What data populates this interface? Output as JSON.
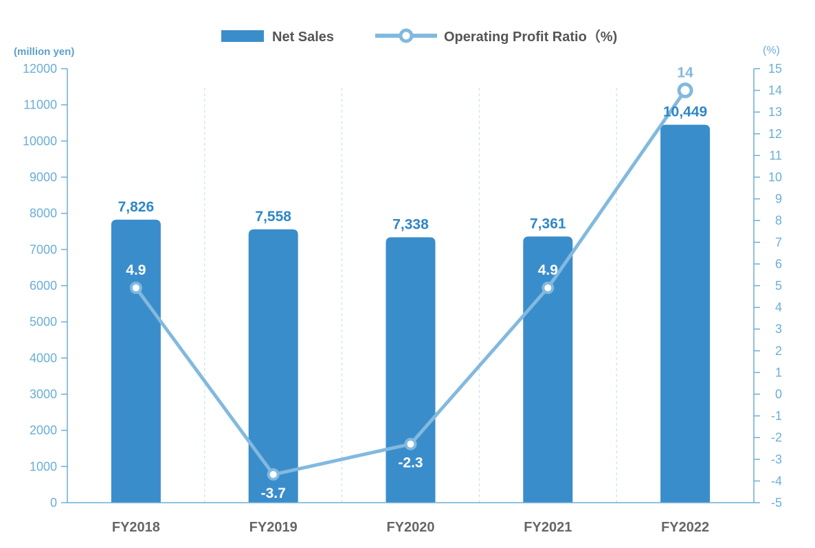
{
  "chart_data": {
    "type": "bar",
    "categories": [
      "FY2018",
      "FY2019",
      "FY2020",
      "FY2021",
      "FY2022"
    ],
    "series": [
      {
        "name": "Net Sales",
        "type": "bar",
        "axis": "left",
        "values": [
          7826,
          7558,
          7338,
          7361,
          10449
        ],
        "labels": [
          "7,826",
          "7,558",
          "7,338",
          "7,361",
          "10,449"
        ],
        "color": "#3a8dcb"
      },
      {
        "name": "Operating Profit Ratio（%)",
        "type": "line",
        "axis": "right",
        "values": [
          4.9,
          -3.7,
          -2.3,
          4.9,
          14
        ],
        "labels": [
          "4.9",
          "-3.7",
          "-2.3",
          "4.9",
          "14"
        ],
        "color": "#82b9de"
      }
    ],
    "y_left": {
      "unit_label": "(million yen)",
      "ylim": [
        0,
        12000
      ],
      "ticks": [
        0,
        1000,
        2000,
        3000,
        4000,
        5000,
        6000,
        7000,
        8000,
        9000,
        10000,
        11000,
        12000
      ]
    },
    "y_right": {
      "unit_label": "(%)",
      "ylim": [
        -5,
        15
      ],
      "ticks": [
        -5,
        -4,
        -3,
        -2,
        -1,
        0,
        1,
        2,
        3,
        4,
        5,
        6,
        7,
        8,
        9,
        10,
        11,
        12,
        13,
        14,
        15
      ]
    },
    "legend_position": "top-center",
    "grid": "vertical dashed separators between categories",
    "colors": {
      "bar": "#3a8dcb",
      "line": "#82b9de",
      "axis": "#6aaed6",
      "category_text": "#666666"
    }
  }
}
